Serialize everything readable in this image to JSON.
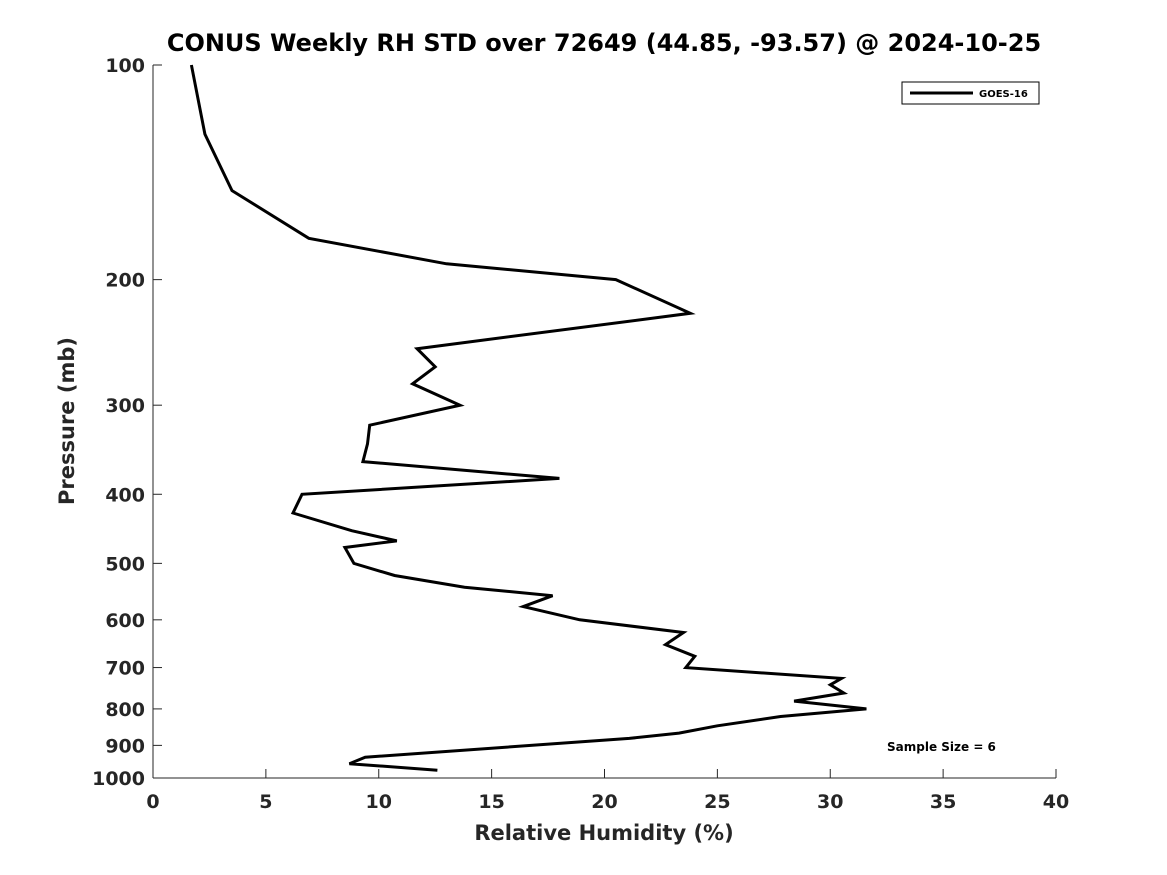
{
  "chart_data": {
    "type": "line",
    "title": "CONUS Weekly RH STD over 72649 (44.85, -93.57) @ 2024-10-25",
    "xlabel": "Relative Humidity (%)",
    "ylabel": "Pressure (mb)",
    "xlim": [
      0,
      40
    ],
    "ylim": [
      100,
      1000
    ],
    "yscale": "log",
    "y_reversed": true,
    "grid": false,
    "x_ticks": [
      0,
      5,
      10,
      15,
      20,
      25,
      30,
      35,
      40
    ],
    "y_ticks": [
      100,
      200,
      300,
      400,
      500,
      600,
      700,
      800,
      900,
      1000
    ],
    "x_tick_labels": [
      "0",
      "5",
      "10",
      "15",
      "20",
      "25",
      "30",
      "35",
      "40"
    ],
    "y_tick_labels": [
      "100",
      "200",
      "300",
      "400",
      "500",
      "600",
      "700",
      "800",
      "900",
      "1000"
    ],
    "legend": {
      "position": "top-right",
      "entries": [
        "GOES-16"
      ]
    },
    "annotation": "Sample Size = 6",
    "series": [
      {
        "name": "GOES-16",
        "color": "#000000",
        "points": [
          [
            1.7,
            100
          ],
          [
            2.3,
            125
          ],
          [
            3.5,
            150
          ],
          [
            6.9,
            175
          ],
          [
            13.0,
            190
          ],
          [
            20.5,
            200
          ],
          [
            23.8,
            223
          ],
          [
            11.7,
            250
          ],
          [
            12.5,
            265
          ],
          [
            11.5,
            280
          ],
          [
            13.6,
            300
          ],
          [
            9.6,
            320
          ],
          [
            9.5,
            340
          ],
          [
            9.3,
            360
          ],
          [
            18.0,
            380
          ],
          [
            6.6,
            400
          ],
          [
            6.2,
            425
          ],
          [
            8.8,
            450
          ],
          [
            10.8,
            465
          ],
          [
            8.5,
            475
          ],
          [
            8.9,
            500
          ],
          [
            10.7,
            520
          ],
          [
            13.8,
            540
          ],
          [
            17.7,
            555
          ],
          [
            16.4,
            575
          ],
          [
            18.9,
            600
          ],
          [
            23.5,
            625
          ],
          [
            22.7,
            650
          ],
          [
            24.0,
            675
          ],
          [
            23.6,
            700
          ],
          [
            30.5,
            725
          ],
          [
            30.0,
            740
          ],
          [
            30.6,
            760
          ],
          [
            28.4,
            780
          ],
          [
            31.6,
            800
          ],
          [
            27.8,
            820
          ],
          [
            25.0,
            845
          ],
          [
            23.3,
            865
          ],
          [
            21.1,
            880
          ],
          [
            9.4,
            935
          ],
          [
            8.7,
            955
          ],
          [
            12.6,
            975
          ]
        ]
      }
    ]
  }
}
